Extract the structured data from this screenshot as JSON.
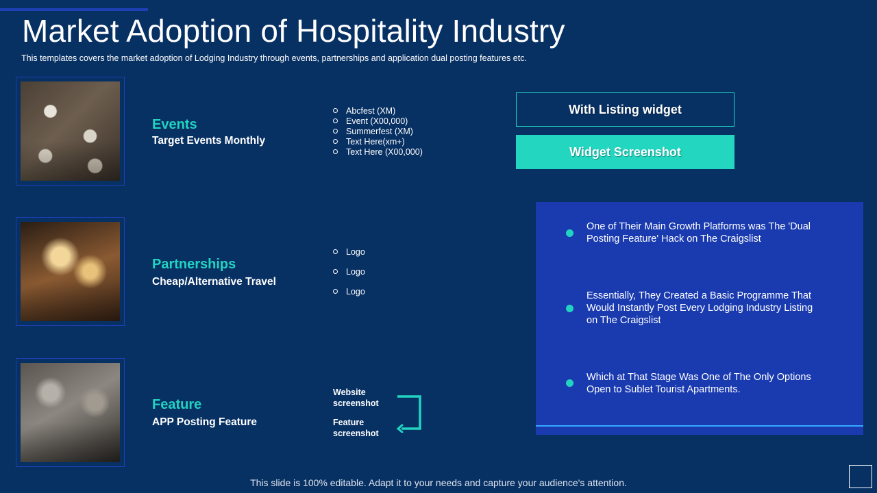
{
  "slide": {
    "title": "Market Adoption of Hospitality Industry",
    "subtitle": "This templates covers the market adoption of Lodging Industry through events, partnerships and application dual posting features etc.",
    "footer": "This slide is 100% editable. Adapt it to your needs and capture your audience's attention."
  },
  "rows": {
    "events": {
      "title": "Events",
      "sub": "Target Events Monthly",
      "items": [
        "Abcfest (XM)",
        "Event (X00,000)",
        "Summerfest (XM)",
        "Text Here(xm+)",
        "Text Here  (X00,000)"
      ]
    },
    "partnerships": {
      "title": "Partnerships",
      "sub": "Cheap/Alternative Travel",
      "items": [
        "Logo",
        "Logo",
        "Logo"
      ]
    },
    "feature": {
      "title": "Feature",
      "sub": "APP Posting Feature",
      "website_label": "Website screenshot",
      "feature_label": "Feature screenshot"
    }
  },
  "buttons": {
    "listing": "With Listing widget",
    "screenshot": "Widget Screenshot"
  },
  "panel": {
    "points": [
      "One of Their Main Growth Platforms was The 'Dual Posting Feature' Hack on The Craigslist",
      "Essentially, They Created a Basic Programme That Would Instantly Post Every Lodging Industry Listing on The Craigslist",
      "Which at That Stage Was One of The Only Options Open to Sublet Tourist Apartments."
    ]
  },
  "colors": {
    "background": "#073063",
    "accent": "#22d3c1",
    "panel": "#1a3bb0",
    "frame": "#1f3fb5"
  },
  "icons": {
    "loop": "loop-arrow-icon",
    "bullet": "ring-bullet-icon"
  }
}
